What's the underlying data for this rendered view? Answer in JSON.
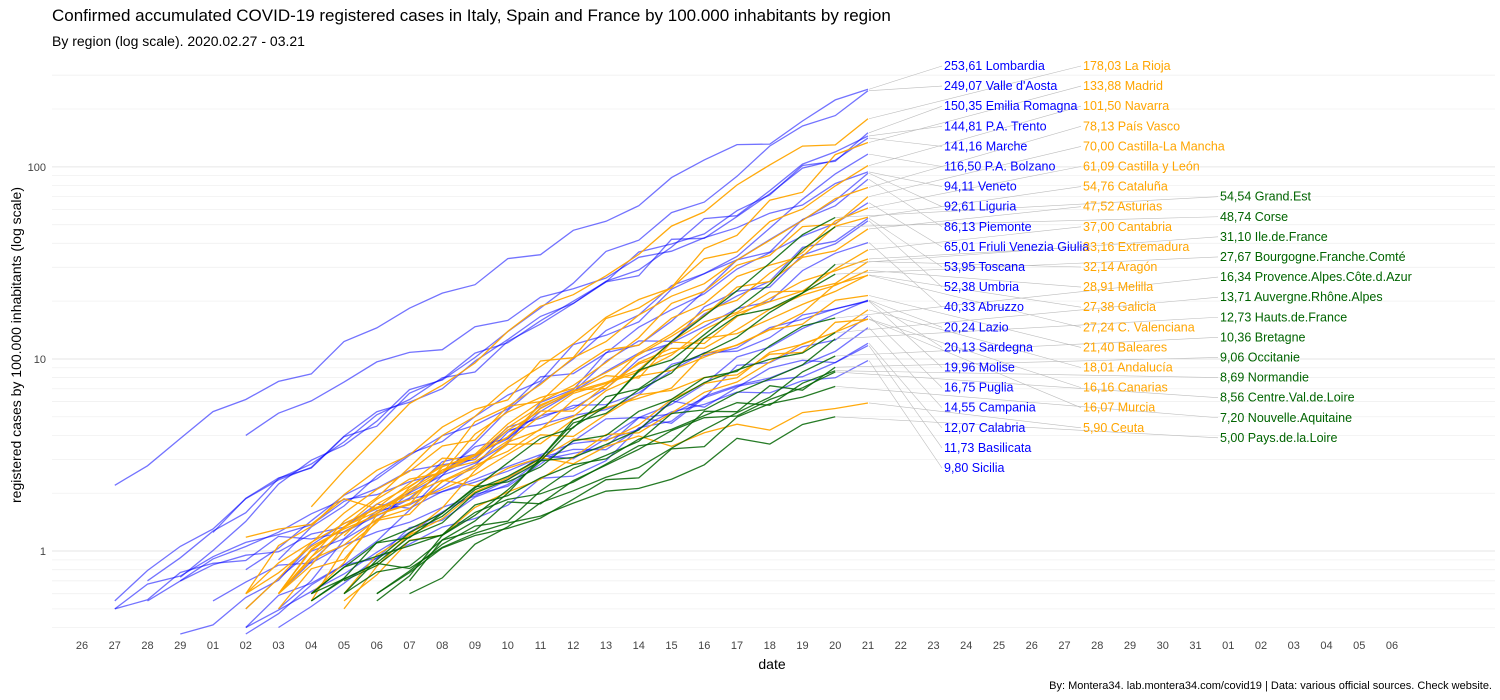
{
  "chart_data": {
    "type": "line",
    "title": "Confirmed accumulated COVID-19 registered cases in Italy, Spain and France by 100.000 inhabitants by region",
    "subtitle": "By region (log scale). 2020.02.27 - 03.21",
    "xlabel": "date",
    "ylabel": "registered cases by 100.000 inhabitants (log scale)",
    "caption": "By: Montera34. lab.montera34.com/covid19 | Data: various official sources. Check website.",
    "y_scale": "log",
    "ylim": [
      0.37,
      360
    ],
    "y_ticks": [
      "1",
      "10",
      "100"
    ],
    "x_ticks": [
      "26",
      "27",
      "28",
      "29",
      "01",
      "02",
      "03",
      "04",
      "05",
      "06",
      "07",
      "08",
      "09",
      "10",
      "11",
      "12",
      "13",
      "14",
      "15",
      "16",
      "17",
      "18",
      "19",
      "20",
      "21",
      "22",
      "23",
      "24",
      "25",
      "26",
      "27",
      "28",
      "29",
      "30",
      "31",
      "01",
      "02",
      "03",
      "04",
      "05",
      "06"
    ],
    "colors": {
      "italy": "#0000ff",
      "spain": "#ffa500",
      "france": "#006400"
    },
    "groups": [
      {
        "name": "Italy",
        "color_key": "italy",
        "start_date": "27",
        "end_date": "21",
        "series": [
          {
            "name": "Lombardia",
            "label": "253,61 Lombardia",
            "final": 253.61,
            "start": 2.2
          },
          {
            "name": "Valle d'Aosta",
            "label": "249,07 Valle d'Aosta",
            "final": 249.07,
            "start": 0.73
          },
          {
            "name": "Emilia Romagna",
            "label": "150,35 Emilia Romagna",
            "final": 150.35,
            "start": 1.25
          },
          {
            "name": "P.A. Trento",
            "label": "144,81 P.A. Trento",
            "final": 144.81,
            "start": 0.7
          },
          {
            "name": "Marche",
            "label": "141,16 Marche",
            "final": 141.16,
            "start": 0.55
          },
          {
            "name": "P.A. Bolzano",
            "label": "116,50 P.A. Bolzano",
            "final": 116.5,
            "start": 0.5
          },
          {
            "name": "Veneto",
            "label": "94,11 Veneto",
            "final": 94.11,
            "start": 4.0
          },
          {
            "name": "Liguria",
            "label": "92,61 Liguria",
            "final": 92.61,
            "start": 0.9
          },
          {
            "name": "Piemonte",
            "label": "86,13 Piemonte",
            "final": 86.13,
            "start": 0.3
          },
          {
            "name": "Friuli Venezia Giulia",
            "label": "65,01 Friuli Venezia Giulia",
            "final": 65.01,
            "start": 0.8
          },
          {
            "name": "Toscana",
            "label": "53,95 Toscana",
            "final": 53.95,
            "start": 0.3
          },
          {
            "name": "Umbria",
            "label": "52,38 Umbria",
            "final": 52.38,
            "start": 0.6
          },
          {
            "name": "Abruzzo",
            "label": "40,33 Abruzzo",
            "final": 40.33,
            "start": 0.5
          },
          {
            "name": "Lazio",
            "label": "20,24 Lazio",
            "final": 20.24,
            "start": 0.4
          },
          {
            "name": "Sardegna",
            "label": "20,13 Sardegna",
            "final": 20.13,
            "start": 0.5
          },
          {
            "name": "Molise",
            "label": "19,96 Molise",
            "final": 19.96,
            "start": 0.7
          },
          {
            "name": "Puglia",
            "label": "16,75 Puglia",
            "final": 16.75,
            "start": 0.4
          },
          {
            "name": "Campania",
            "label": "14,55 Campania",
            "final": 14.55,
            "start": 0.4
          },
          {
            "name": "Calabria",
            "label": "12,07 Calabria",
            "final": 12.07,
            "start": 0.55
          },
          {
            "name": "Basilicata",
            "label": "11,73 Basilicata",
            "final": 11.73,
            "start": 0.55
          },
          {
            "name": "Sicilia",
            "label": "9,80 Sicilia",
            "final": 9.8,
            "start": 0.5
          }
        ]
      },
      {
        "name": "Spain",
        "color_key": "spain",
        "start_date": "02",
        "end_date": "21",
        "series": [
          {
            "name": "La Rioja",
            "label": "178,03 La Rioja",
            "final": 178.03,
            "start": 1.7
          },
          {
            "name": "Madrid",
            "label": "133,88 Madrid",
            "final": 133.88,
            "start": 0.55
          },
          {
            "name": "Navarra",
            "label": "101,50 Navarra",
            "final": 101.5,
            "start": 0.6
          },
          {
            "name": "País Vasco",
            "label": "78,13 País Vasco",
            "final": 78.13,
            "start": 0.6
          },
          {
            "name": "Castilla-La Mancha",
            "label": "70,00 Castilla-La Mancha",
            "final": 70.0,
            "start": 0.6
          },
          {
            "name": "Castilla y León",
            "label": "61,09 Castilla y León",
            "final": 61.09,
            "start": 0.5
          },
          {
            "name": "Cataluña",
            "label": "54,76 Cataluña",
            "final": 54.76,
            "start": 0.5
          },
          {
            "name": "Asturias",
            "label": "47,52 Asturias",
            "final": 47.52,
            "start": 0.6
          },
          {
            "name": "Cantabria",
            "label": "37,00 Cantabria",
            "final": 37.0,
            "start": 0.6
          },
          {
            "name": "Extremadura",
            "label": "33,16 Extremadura",
            "final": 33.16,
            "start": 0.6
          },
          {
            "name": "Aragón",
            "label": "32,14 Aragón",
            "final": 32.14,
            "start": 0.6
          },
          {
            "name": "Melilla",
            "label": "28,91 Melilla",
            "final": 28.91,
            "start": 1.2
          },
          {
            "name": "Galicia",
            "label": "27,38 Galicia",
            "final": 27.38,
            "start": 0.6
          },
          {
            "name": "C. Valenciana",
            "label": "27,24 C. Valenciana",
            "final": 27.24,
            "start": 0.5
          },
          {
            "name": "Baleares",
            "label": "21,40 Baleares",
            "final": 21.4,
            "start": 0.6
          },
          {
            "name": "Andalucía",
            "label": "18,01 Andalucía",
            "final": 18.01,
            "start": 0.6
          },
          {
            "name": "Canarias",
            "label": "16,16 Canarias",
            "final": 16.16,
            "start": 0.55
          },
          {
            "name": "Murcia",
            "label": "16,07 Murcia",
            "final": 16.07,
            "start": 0.6
          },
          {
            "name": "Ceuta",
            "label": "5,90 Ceuta",
            "final": 5.9,
            "start": 1.18
          }
        ]
      },
      {
        "name": "France",
        "color_key": "france",
        "start_date": "04",
        "end_date": "20",
        "series": [
          {
            "name": "Grand.Est",
            "label": "54,54 Grand.Est",
            "final": 54.54,
            "start": 0.7
          },
          {
            "name": "Corse",
            "label": "48,74 Corse",
            "final": 48.74,
            "start": 0.55
          },
          {
            "name": "Ile.de.France",
            "label": "31,10 Ile.de.France",
            "final": 31.1,
            "start": 0.6
          },
          {
            "name": "Bourgogne.Franche.Comté",
            "label": "27,67 Bourgogne.Franche.Comté",
            "final": 27.67,
            "start": 0.55
          },
          {
            "name": "Provence.Alpes.Côte.d.Azur",
            "label": "16,34 Provence.Alpes.Côte.d.Azur",
            "final": 16.34,
            "start": 0.6
          },
          {
            "name": "Auvergne.Rhône.Alpes",
            "label": "13,71 Auvergne.Rhône.Alpes",
            "final": 13.71,
            "start": 0.6
          },
          {
            "name": "Hauts.de.France",
            "label": "12,73 Hauts.de.France",
            "final": 12.73,
            "start": 0.6
          },
          {
            "name": "Bretagne",
            "label": "10,36 Bretagne",
            "final": 10.36,
            "start": 0.6
          },
          {
            "name": "Occitanie",
            "label": "9,06 Occitanie",
            "final": 9.06,
            "start": 0.7
          },
          {
            "name": "Normandie",
            "label": "8,69 Normandie",
            "final": 8.69,
            "start": 0.6
          },
          {
            "name": "Centre.Val.de.Loire",
            "label": "8,56 Centre.Val.de.Loire",
            "final": 8.56,
            "start": 0.6
          },
          {
            "name": "Nouvelle.Aquitaine",
            "label": "7,20 Nouvelle.Aquitaine",
            "final": 7.2,
            "start": 0.6
          },
          {
            "name": "Pays.de.la.Loire",
            "label": "5,00 Pays.de.la.Loire",
            "final": 5.0,
            "start": 0.55
          }
        ]
      }
    ]
  }
}
